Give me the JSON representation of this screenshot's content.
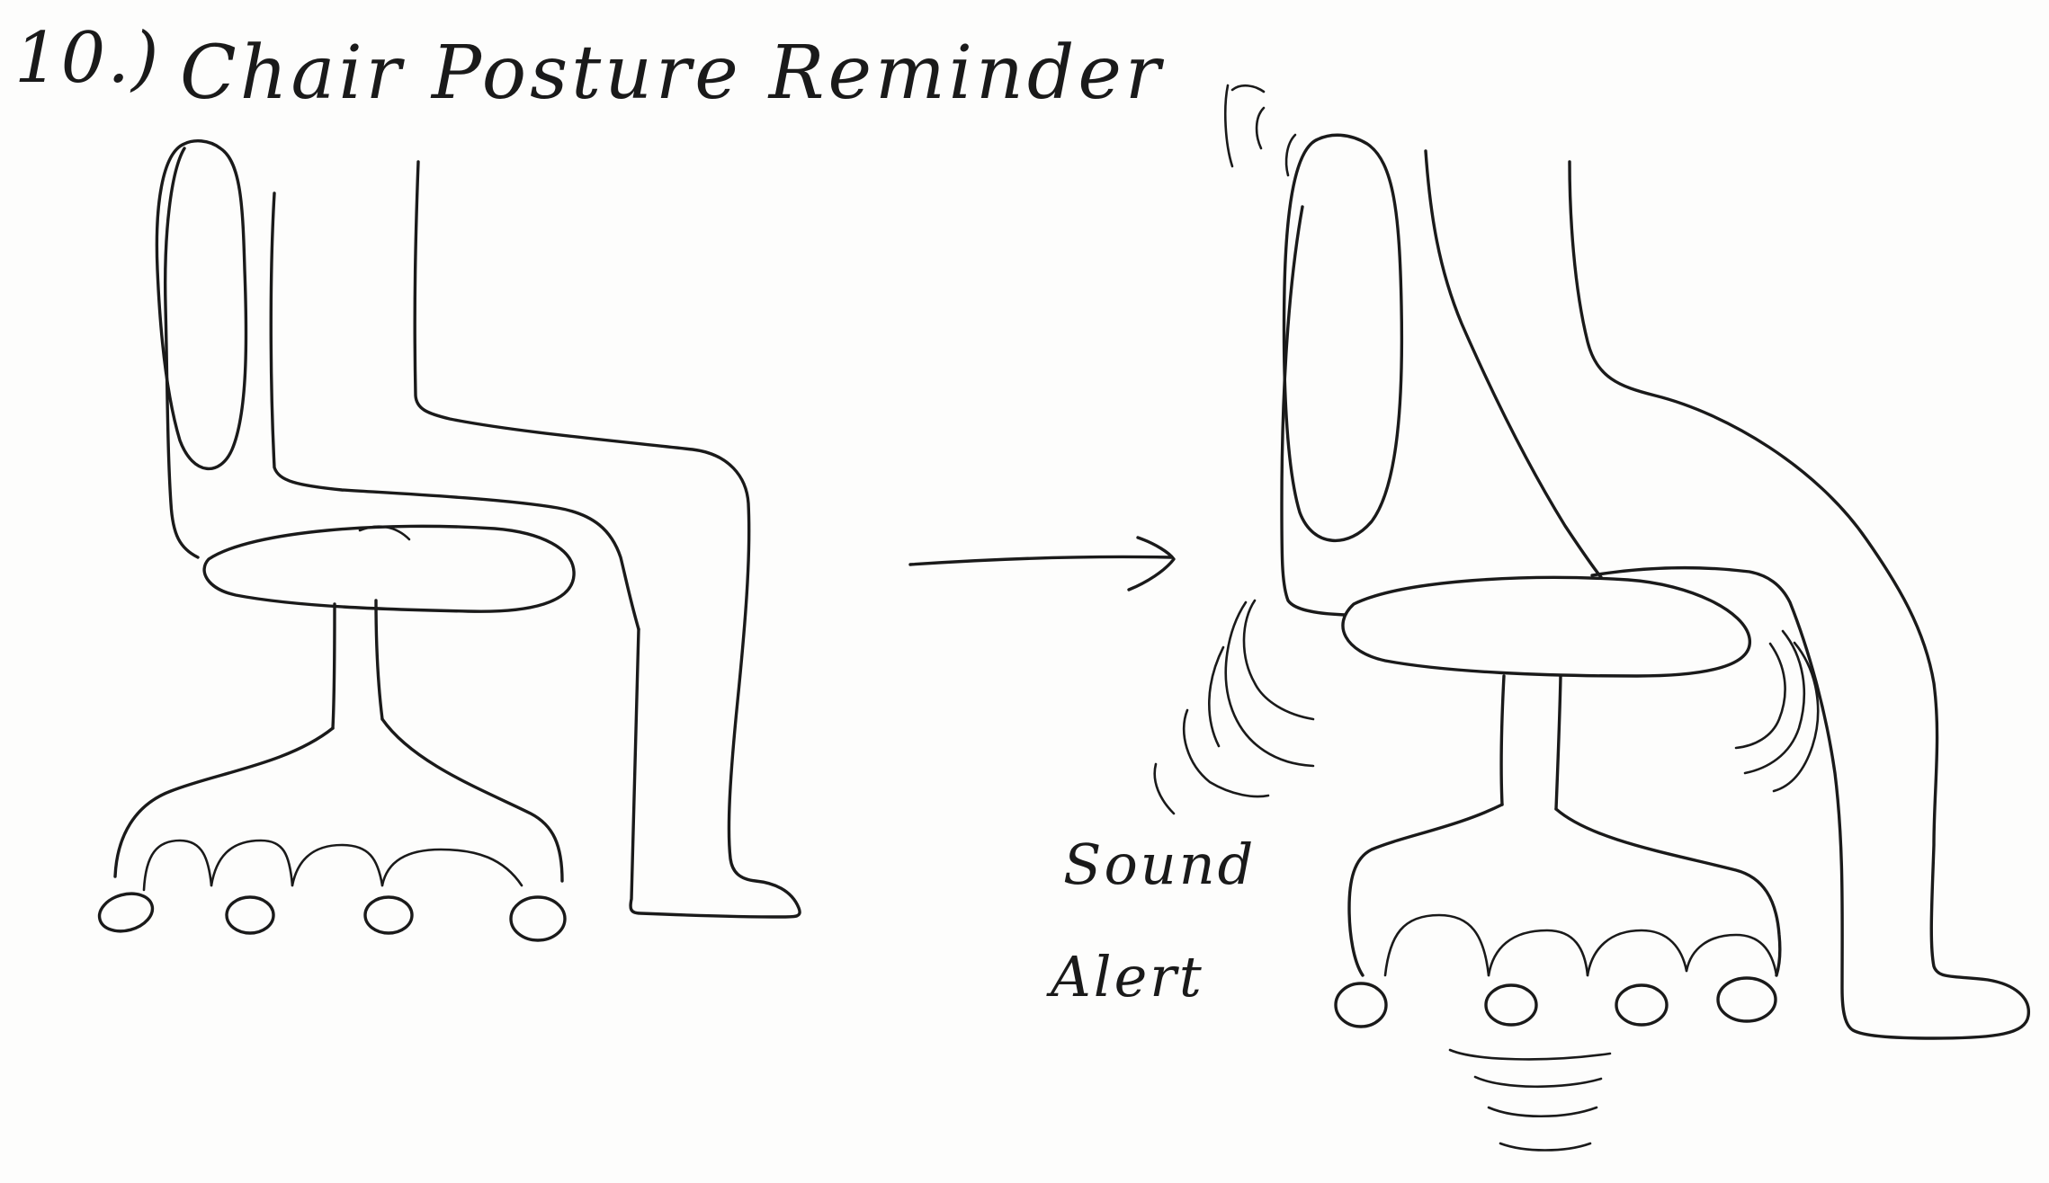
{
  "title": {
    "number": "10.)",
    "text": "Chair Posture Reminder"
  },
  "labels": {
    "sound": "Sound",
    "alert": "Alert"
  },
  "panels": {
    "left": "Chair with person sitting upright",
    "right": "Chair with person leaning forward, vibrating with sound alert"
  }
}
